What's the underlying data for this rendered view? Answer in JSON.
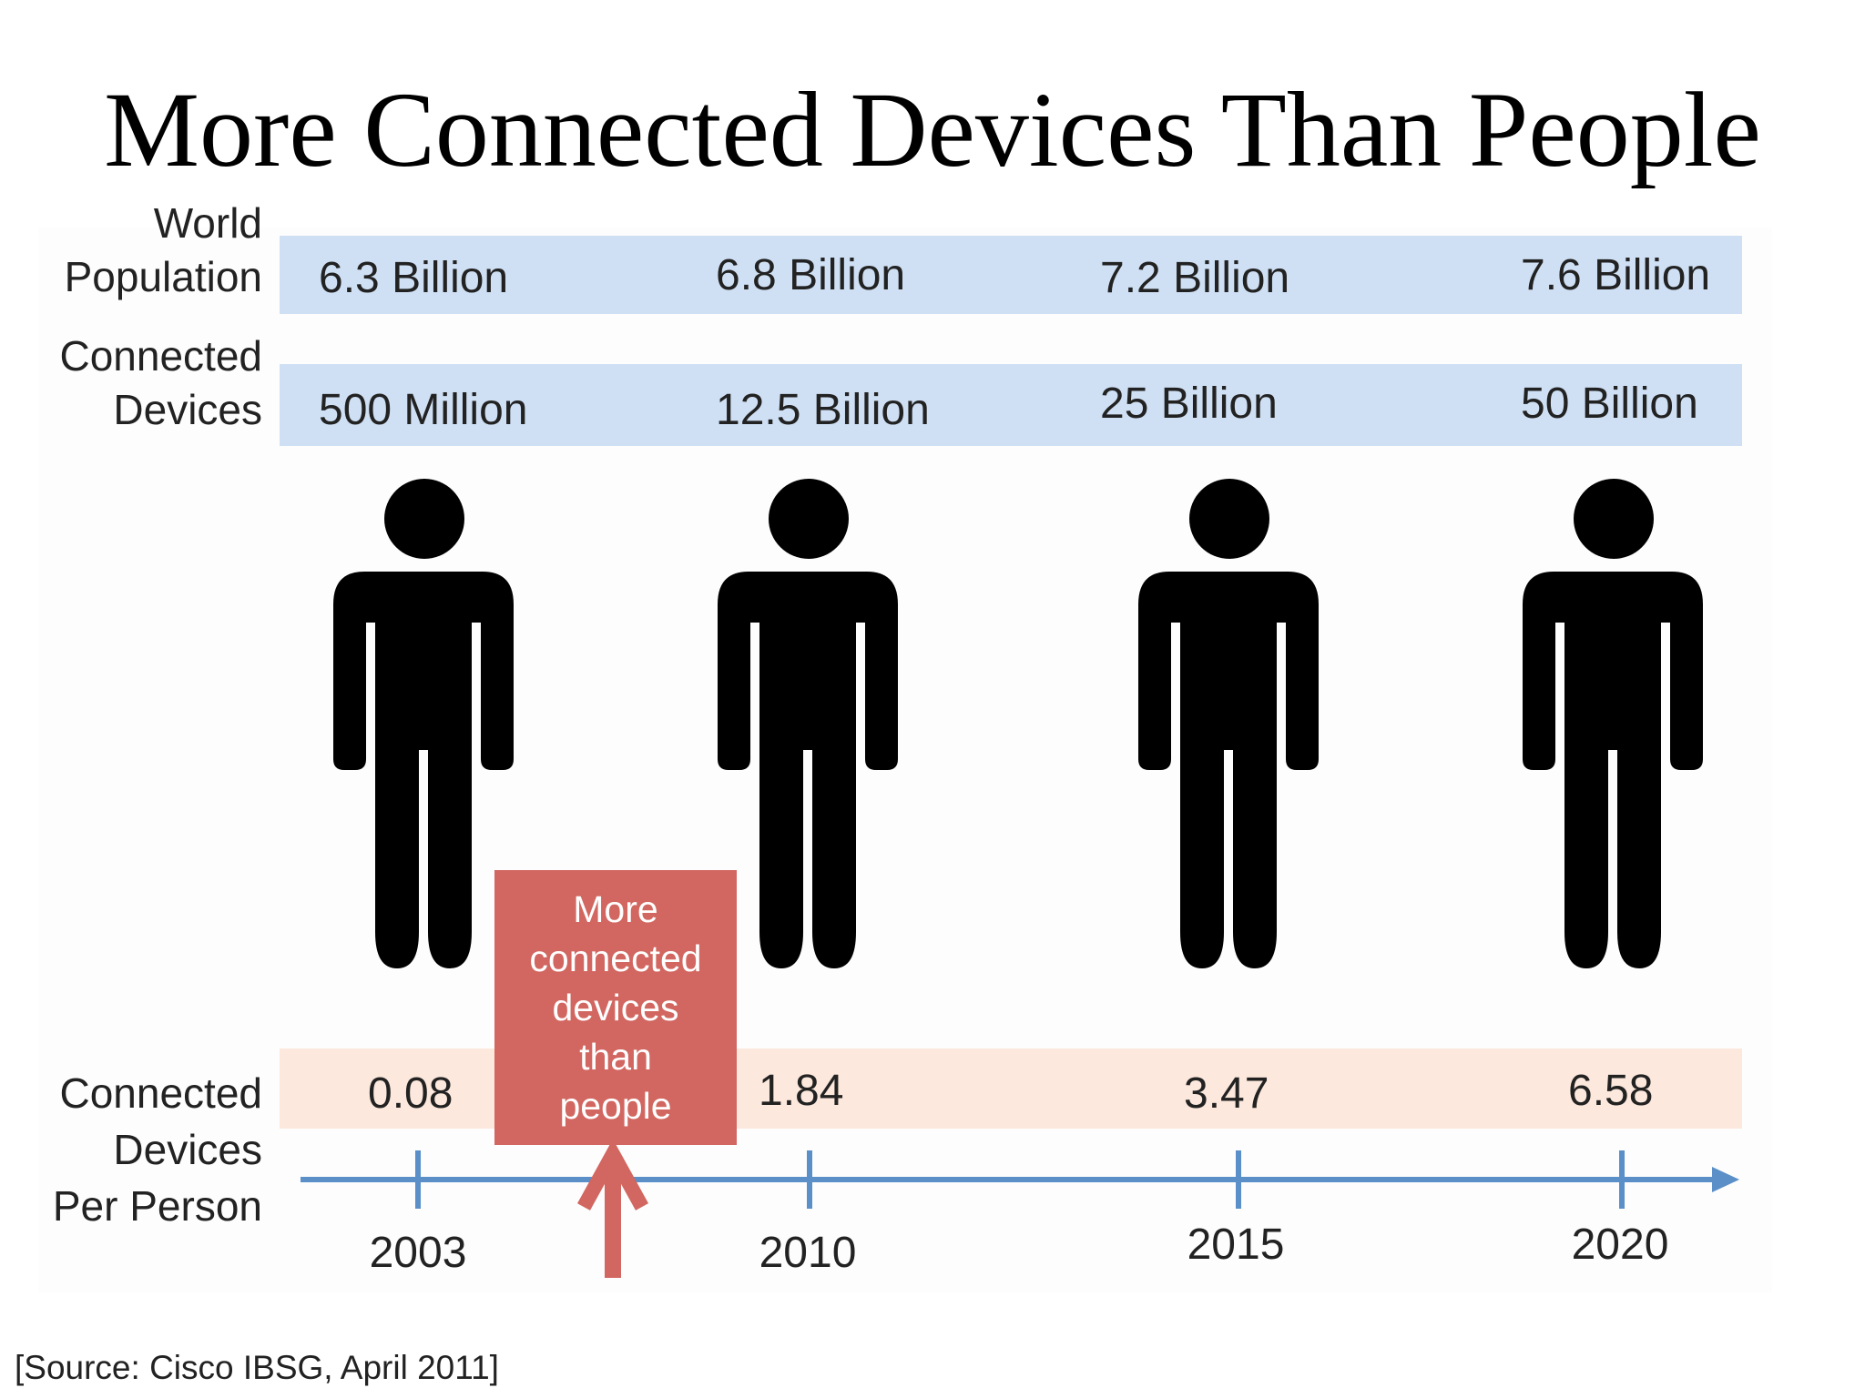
{
  "title": "More Connected Devices Than People",
  "labels": {
    "population": [
      "World",
      "Population"
    ],
    "devices": [
      "Connected",
      "Devices"
    ],
    "per_person": [
      "Connected",
      "Devices",
      "Per Person"
    ]
  },
  "callout": {
    "lines": [
      "More",
      "connected",
      "devices",
      "than",
      "people"
    ]
  },
  "source": "[Source: Cisco IBSG, April 2011]",
  "colors": {
    "band_blue": "#cfe0f4",
    "band_peach": "#fce8dc",
    "axis": "#5a8fc7",
    "callout": "#d26660",
    "person_icon": "#000000"
  },
  "icon_names": [
    "person-icon",
    "arrow-up-icon",
    "arrow-right-icon"
  ],
  "chart_data": {
    "type": "table",
    "title": "More Connected Devices Than People",
    "x": [
      "2003",
      "2010",
      "2015",
      "2020"
    ],
    "rows": [
      {
        "name": "World Population",
        "values": [
          "6.3 Billion",
          "6.8 Billion",
          "7.2 Billion",
          "7.6 Billion"
        ]
      },
      {
        "name": "Connected Devices",
        "values": [
          "500 Million",
          "12.5 Billion",
          "25 Billion",
          "50 Billion"
        ]
      },
      {
        "name": "Connected Devices Per Person",
        "values": [
          "0.08",
          "1.84",
          "3.47",
          "6.58"
        ]
      }
    ],
    "series": [
      {
        "name": "World Population",
        "unit": "Billion",
        "values": [
          6.3,
          6.8,
          7.2,
          7.6
        ]
      },
      {
        "name": "Connected Devices",
        "unit": "Billion",
        "values": [
          0.5,
          12.5,
          25,
          50
        ]
      },
      {
        "name": "Connected Devices Per Person",
        "values": [
          0.08,
          1.84,
          3.47,
          6.58
        ]
      }
    ],
    "annotation": {
      "text": "More connected devices than people",
      "year": 2008
    }
  }
}
